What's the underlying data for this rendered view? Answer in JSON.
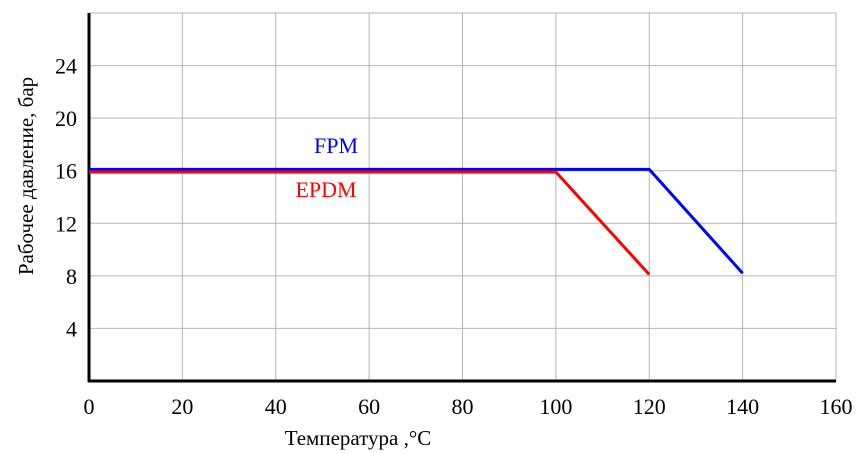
{
  "chart_data": {
    "type": "line",
    "title": "",
    "xlabel": "Температура ,°C",
    "ylabel": "Рабочее давление, бар",
    "xlim": [
      0,
      160
    ],
    "ylim": [
      0,
      28
    ],
    "x_ticks": [
      "0",
      "20",
      "40",
      "60",
      "80",
      "100",
      "120",
      "140",
      "160"
    ],
    "y_ticks": [
      "4",
      "8",
      "12",
      "16",
      "20",
      "24"
    ],
    "grid": true,
    "series": [
      {
        "name": "FPM",
        "color": "#0000ff",
        "x": [
          0,
          120,
          140
        ],
        "y": [
          16.1,
          16.1,
          8.2
        ]
      },
      {
        "name": "EPDM",
        "color": "#ff0000",
        "x": [
          0,
          100,
          120
        ],
        "y": [
          15.9,
          15.9,
          8.1
        ]
      }
    ]
  }
}
